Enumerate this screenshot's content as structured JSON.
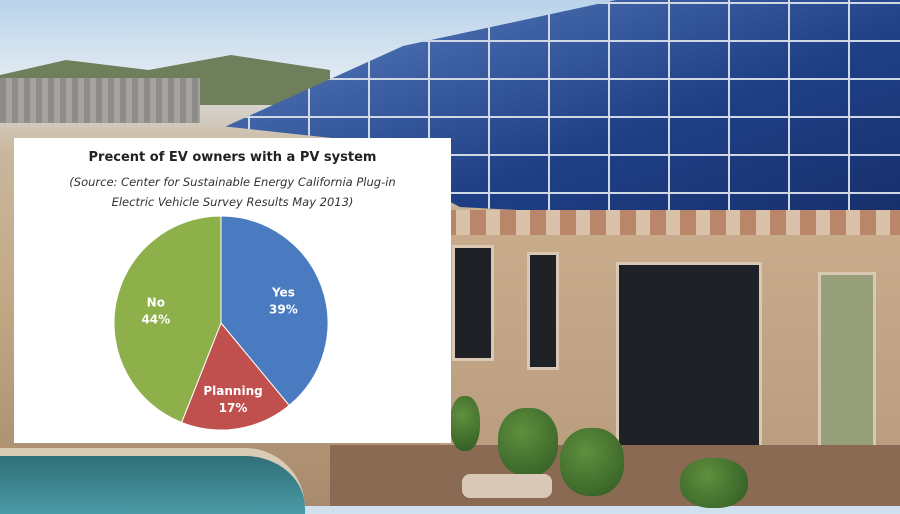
{
  "chart_data": {
    "type": "pie",
    "title": "Precent of EV owners with a PV system",
    "subtitle_line1": "(Source: Center for Sustainable Energy California Plug-in",
    "subtitle_line2": "Electric Vehicle Survey Results May 2013)",
    "slices": [
      {
        "label": "Yes",
        "value": 39,
        "value_label": "39%",
        "color": "#4a7bc1"
      },
      {
        "label": "Planning",
        "value": 17,
        "value_label": "17%",
        "color": "#c0504d"
      },
      {
        "label": "No",
        "value": 44,
        "value_label": "44%",
        "color": "#8db04b"
      }
    ],
    "start": "top",
    "direction": "clockwise",
    "legend": "none"
  }
}
